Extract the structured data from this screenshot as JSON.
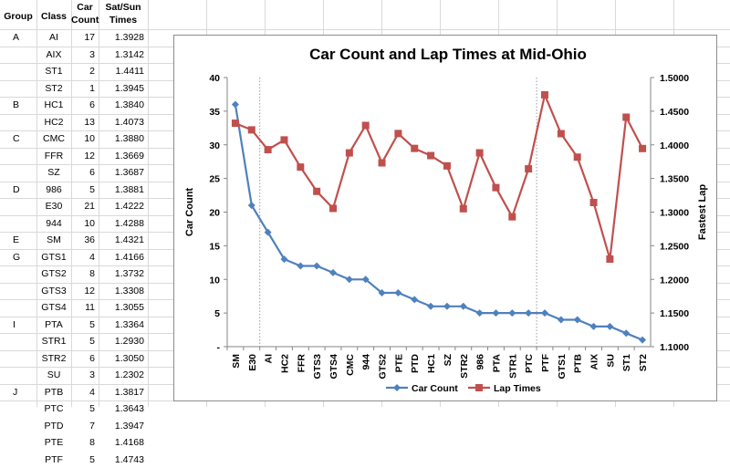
{
  "table": {
    "headers": {
      "group": "Group",
      "class": "Class",
      "car_count": [
        "Car",
        "Count"
      ],
      "times": [
        "Sat/Sun",
        "Times"
      ]
    },
    "rows": [
      {
        "group": "A",
        "class": "AI",
        "count": "17",
        "time": "1.3928"
      },
      {
        "group": "",
        "class": "AIX",
        "count": "3",
        "time": "1.3142"
      },
      {
        "group": "",
        "class": "ST1",
        "count": "2",
        "time": "1.4411"
      },
      {
        "group": "",
        "class": "ST2",
        "count": "1",
        "time": "1.3945"
      },
      {
        "group": "B",
        "class": "HC1",
        "count": "6",
        "time": "1.3840"
      },
      {
        "group": "",
        "class": "HC2",
        "count": "13",
        "time": "1.4073"
      },
      {
        "group": "C",
        "class": "CMC",
        "count": "10",
        "time": "1.3880"
      },
      {
        "group": "",
        "class": "FFR",
        "count": "12",
        "time": "1.3669"
      },
      {
        "group": "",
        "class": "SZ",
        "count": "6",
        "time": "1.3687"
      },
      {
        "group": "D",
        "class": "986",
        "count": "5",
        "time": "1.3881"
      },
      {
        "group": "",
        "class": "E30",
        "count": "21",
        "time": "1.4222"
      },
      {
        "group": "",
        "class": "944",
        "count": "10",
        "time": "1.4288"
      },
      {
        "group": "E",
        "class": "SM",
        "count": "36",
        "time": "1.4321"
      },
      {
        "group": "G",
        "class": "GTS1",
        "count": "4",
        "time": "1.4166"
      },
      {
        "group": "",
        "class": "GTS2",
        "count": "8",
        "time": "1.3732"
      },
      {
        "group": "",
        "class": "GTS3",
        "count": "12",
        "time": "1.3308"
      },
      {
        "group": "",
        "class": "GTS4",
        "count": "11",
        "time": "1.3055"
      },
      {
        "group": "I",
        "class": "PTA",
        "count": "5",
        "time": "1.3364"
      },
      {
        "group": "",
        "class": "STR1",
        "count": "5",
        "time": "1.2930"
      },
      {
        "group": "",
        "class": "STR2",
        "count": "6",
        "time": "1.3050"
      },
      {
        "group": "",
        "class": "SU",
        "count": "3",
        "time": "1.2302"
      },
      {
        "group": "J",
        "class": "PTB",
        "count": "4",
        "time": "1.3817"
      },
      {
        "group": "",
        "class": "PTC",
        "count": "5",
        "time": "1.3643"
      },
      {
        "group": "",
        "class": "PTD",
        "count": "7",
        "time": "1.3947"
      },
      {
        "group": "",
        "class": "PTE",
        "count": "8",
        "time": "1.4168"
      },
      {
        "group": "",
        "class": "PTF",
        "count": "5",
        "time": "1.4743"
      }
    ]
  },
  "chart_data": {
    "type": "line",
    "title": "Car Count and Lap Times at Mid-Ohio",
    "categories": [
      "SM",
      "E30",
      "AI",
      "HC2",
      "FFR",
      "GTS3",
      "GTS4",
      "CMC",
      "944",
      "GTS2",
      "PTE",
      "PTD",
      "HC1",
      "SZ",
      "STR2",
      "986",
      "PTA",
      "STR1",
      "PTC",
      "PTF",
      "GTS1",
      "PTB",
      "AIX",
      "SU",
      "ST1",
      "ST2"
    ],
    "series": [
      {
        "name": "Car Count",
        "axis": "left",
        "color": "#4f81bd",
        "marker": "diamond",
        "values": [
          36,
          21,
          17,
          13,
          12,
          12,
          11,
          10,
          10,
          8,
          8,
          7,
          6,
          6,
          6,
          5,
          5,
          5,
          5,
          5,
          4,
          4,
          3,
          3,
          2,
          1
        ]
      },
      {
        "name": "Lap Times",
        "axis": "right",
        "color": "#c0504d",
        "marker": "square",
        "values": [
          1.4321,
          1.4222,
          1.3928,
          1.4073,
          1.3669,
          1.3308,
          1.3055,
          1.388,
          1.4288,
          1.3732,
          1.4168,
          1.3947,
          1.384,
          1.3687,
          1.305,
          1.3881,
          1.3364,
          1.293,
          1.3643,
          1.4743,
          1.4166,
          1.3817,
          1.3142,
          1.2302,
          1.4411,
          1.3945
        ]
      }
    ],
    "ylabel_left": "Car Count",
    "ylabel_right": "Fastest Lap",
    "ylim_left": [
      0,
      40
    ],
    "ylim_right": [
      1.1,
      1.5
    ],
    "left_ticks": [
      "-",
      "5",
      "10",
      "15",
      "20",
      "25",
      "30",
      "35",
      "40"
    ],
    "right_ticks": [
      "1.1000",
      "1.1500",
      "1.2000",
      "1.2500",
      "1.3000",
      "1.3500",
      "1.4000",
      "1.4500",
      "1.5000"
    ],
    "dividers_after": [
      "E30",
      "PTC"
    ],
    "grid": false,
    "legend": "bottom"
  }
}
